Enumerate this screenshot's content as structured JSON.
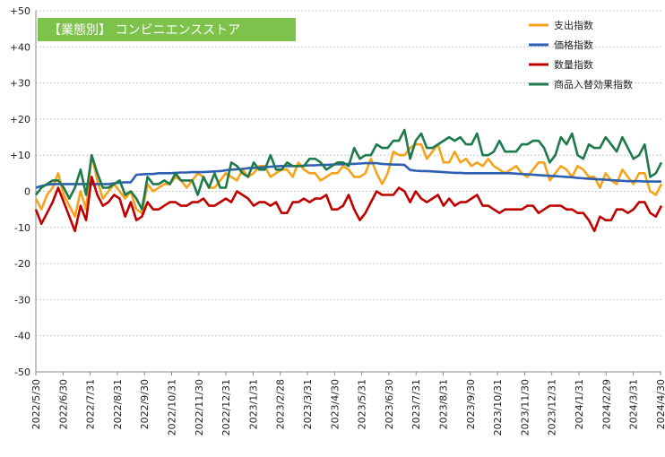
{
  "chart_data": {
    "type": "line",
    "title": "【業態別】 コンビニエンスストア",
    "title_box_color": "#7dc24b",
    "ylim": [
      -50,
      50
    ],
    "yticks": [
      "-50",
      "-40",
      "-30",
      "-20",
      "-10",
      "0",
      "+10",
      "+20",
      "+30",
      "+40",
      "+50"
    ],
    "ytick_values": [
      -50,
      -40,
      -30,
      -20,
      -10,
      0,
      10,
      20,
      30,
      40,
      50
    ],
    "grid": "horizontal dotted",
    "legend_position": "top-right",
    "x_tick_labels": [
      "2022/5/30",
      "2022/6/30",
      "2022/7/31",
      "2022/8/31",
      "2022/9/30",
      "2022/10/31",
      "2022/11/30",
      "2022/12/31",
      "2023/1/31",
      "2023/2/28",
      "2023/3/31",
      "2023/4/30",
      "2023/5/31",
      "2023/6/30",
      "2023/7/31",
      "2023/8/31",
      "2023/9/30",
      "2023/10/31",
      "2023/11/30",
      "2023/12/31",
      "2024/1/31",
      "2024/2/29",
      "2024/3/31",
      "2024/4/30"
    ],
    "series": [
      {
        "name": "支出指数",
        "color": "#f5a31a",
        "values": [
          -2,
          -5,
          -1,
          1,
          5,
          -1,
          -4,
          -7,
          0,
          -5,
          10,
          3,
          -2,
          0,
          2,
          0,
          -2,
          0,
          -5,
          -6,
          2,
          0,
          1,
          2,
          2,
          4,
          3,
          1,
          3,
          5,
          4,
          1,
          1,
          3,
          5,
          4,
          3,
          6,
          4,
          5,
          7,
          7,
          4,
          5,
          6,
          6,
          4,
          8,
          6,
          5,
          5,
          3,
          4,
          5,
          5,
          7,
          6,
          4,
          4,
          5,
          9,
          5,
          2,
          5,
          11,
          10,
          10,
          12,
          13,
          13,
          9,
          11,
          13,
          8,
          8,
          11,
          8,
          9,
          7,
          8,
          7,
          9,
          7,
          6,
          5,
          6,
          7,
          5,
          4,
          6,
          8,
          8,
          3,
          5,
          7,
          6,
          4,
          7,
          6,
          4,
          4,
          1,
          5,
          3,
          2,
          6,
          4,
          2,
          5,
          5,
          0,
          -1,
          2
        ],
        "labels_bound": false
      },
      {
        "name": "価格指数",
        "color": "#2e5fb3",
        "values": [
          1,
          1.5,
          1.8,
          2,
          2,
          2,
          2,
          2,
          2,
          2,
          2,
          2,
          2,
          2,
          2.2,
          2.4,
          2.5,
          2.5,
          4.6,
          4.7,
          4.8,
          4.8,
          5,
          5,
          5,
          5.1,
          5.2,
          5.2,
          5.3,
          5.3,
          5.3,
          5.4,
          5.5,
          5.6,
          5.8,
          6,
          6.1,
          6.2,
          6.4,
          6.5,
          6.6,
          6.7,
          6.8,
          6.9,
          7,
          7,
          7,
          7,
          7.1,
          7.2,
          7.2,
          7.3,
          7.3,
          7.4,
          7.5,
          7.5,
          7.6,
          7.6,
          7.7,
          7.8,
          7.8,
          7.8,
          7.6,
          7.5,
          7.4,
          7.4,
          7.3,
          5.9,
          5.7,
          5.6,
          5.6,
          5.5,
          5.4,
          5.3,
          5.2,
          5.1,
          5.1,
          5,
          5,
          5,
          5,
          5,
          5,
          5,
          5,
          5,
          4.9,
          4.8,
          4.7,
          4.6,
          4.5,
          4.4,
          4.3,
          4.2,
          4.1,
          4,
          3.9,
          3.7,
          3.6,
          3.5,
          3.4,
          3.3,
          3.2,
          3.1,
          3,
          2.9,
          2.8,
          2.8,
          2.8,
          2.7,
          2.7,
          2.7,
          2.7
        ],
        "labels_bound": false
      },
      {
        "name": "数量指数",
        "color": "#c00000",
        "values": [
          -5,
          -9,
          -6,
          -3,
          1,
          -3,
          -7,
          -11,
          -4,
          -8,
          4,
          -1,
          -4,
          -3,
          -1,
          -2,
          -7,
          -3,
          -8,
          -7,
          -3,
          -5,
          -5,
          -4,
          -3,
          -3,
          -4,
          -4,
          -3,
          -3,
          -2,
          -4,
          -4,
          -3,
          -2,
          -3,
          0,
          -1,
          -2,
          -4,
          -3,
          -3,
          -4,
          -3,
          -6,
          -6,
          -3,
          -3,
          -2,
          -3,
          -2,
          -2,
          -1,
          -5,
          -5,
          -4,
          -1,
          -5,
          -8,
          -6,
          -3,
          0,
          -1,
          -1,
          -1,
          1,
          0,
          -3,
          0,
          -2,
          -3,
          -2,
          -1,
          -4,
          -2,
          -4,
          -3,
          -3,
          -2,
          -1,
          -4,
          -4,
          -5,
          -6,
          -5,
          -5,
          -5,
          -5,
          -4,
          -4,
          -6,
          -5,
          -4,
          -4,
          -4,
          -5,
          -5,
          -6,
          -6,
          -8,
          -11,
          -7,
          -8,
          -8,
          -5,
          -5,
          -6,
          -5,
          -3,
          -3,
          -6,
          -7,
          -4
        ],
        "labels_bound": false
      },
      {
        "name": "商品入替効果指数",
        "color": "#1e7a4a",
        "values": [
          -1,
          1,
          2,
          3,
          3,
          1,
          -2,
          1,
          6,
          -1,
          10,
          5,
          1,
          1,
          2,
          3,
          -1,
          0,
          -2,
          -5,
          4,
          2,
          2,
          3,
          2,
          5,
          3,
          3,
          3,
          -1,
          4,
          1,
          5,
          1,
          1,
          8,
          7,
          5,
          4,
          8,
          6,
          6,
          10,
          6,
          6,
          8,
          7,
          7,
          7,
          9,
          9,
          8,
          6,
          7,
          8,
          8,
          7,
          12,
          9,
          10,
          10,
          13,
          12,
          12,
          14,
          14,
          17,
          9,
          14,
          16,
          12,
          12,
          13,
          14,
          15,
          14,
          15,
          13,
          13,
          16,
          10,
          10,
          11,
          14,
          11,
          11,
          11,
          13,
          13,
          14,
          14,
          12,
          8,
          10,
          15,
          13,
          16,
          10,
          9,
          13,
          12,
          12,
          15,
          13,
          11,
          15,
          12,
          9,
          10,
          13,
          4,
          5,
          8
        ],
        "labels_bound": false
      }
    ]
  }
}
